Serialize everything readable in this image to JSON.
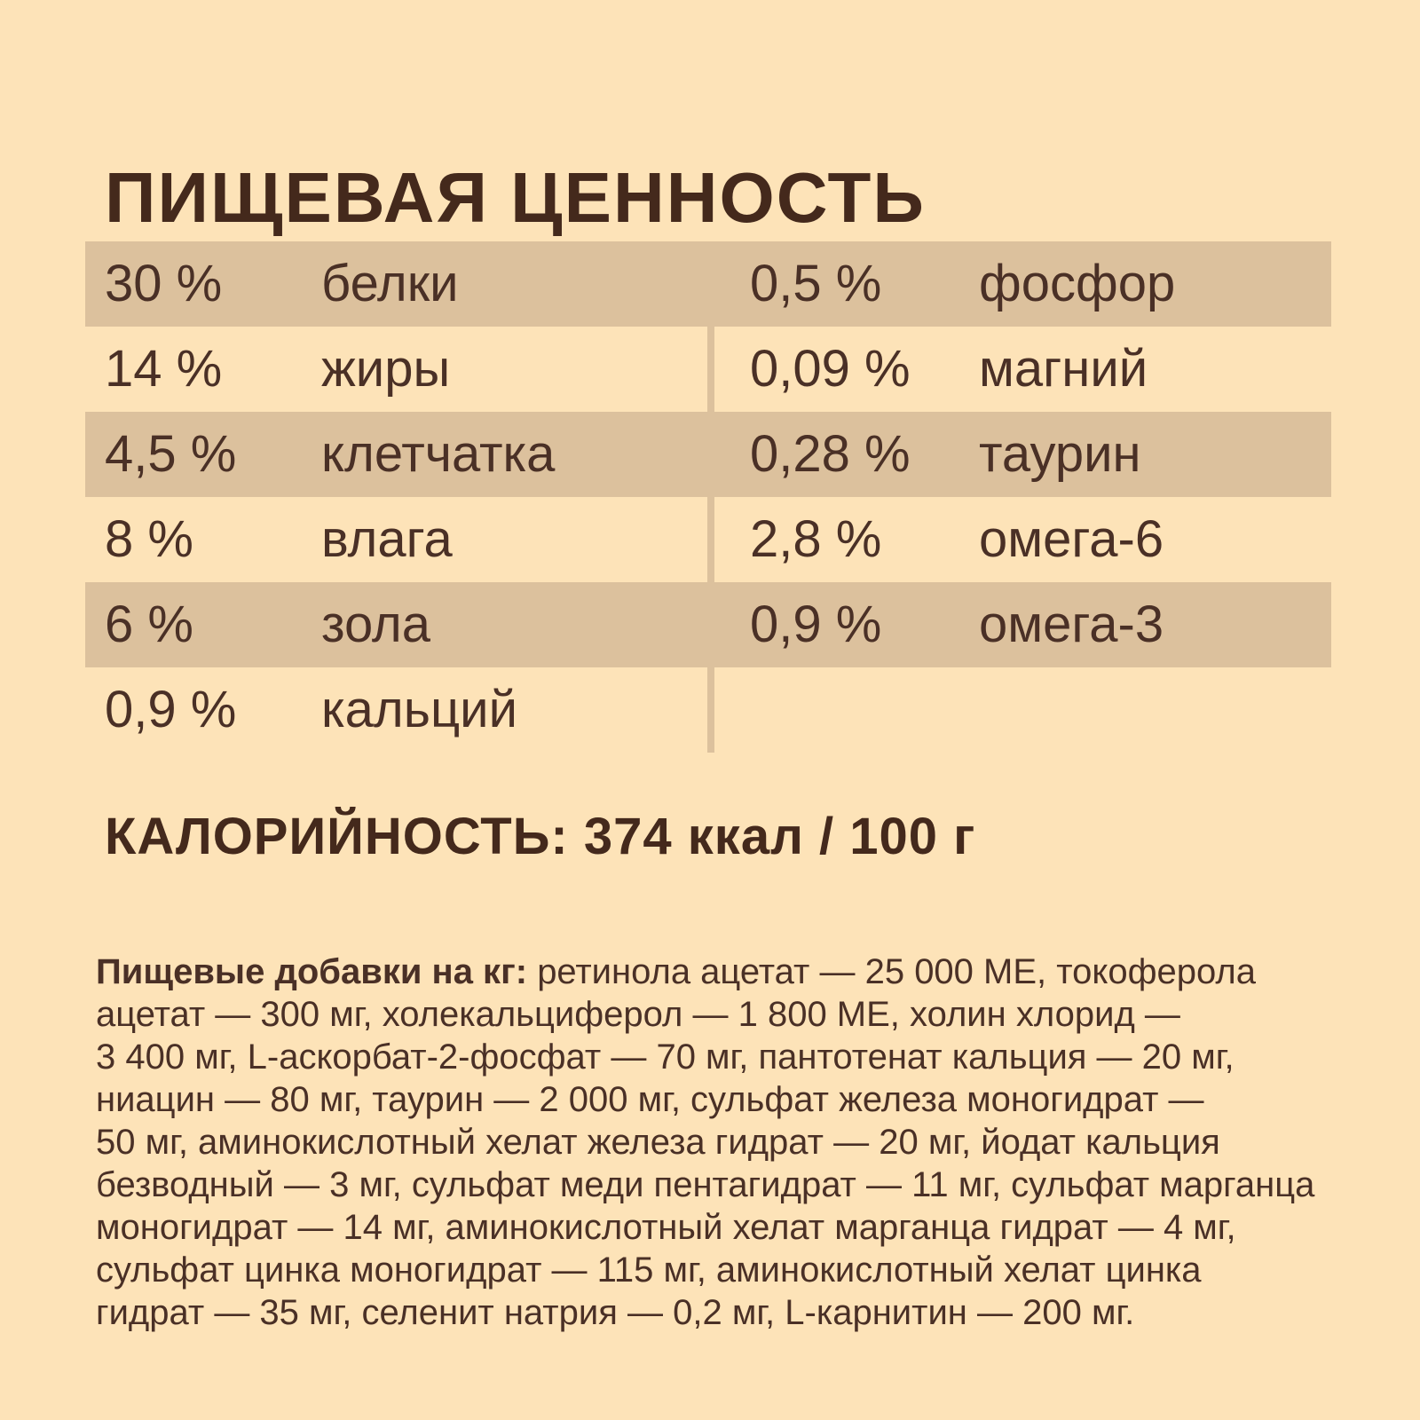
{
  "colors": {
    "background": "#fde3b8",
    "stripe": "#dcc19d",
    "divider": "#dcc19d",
    "heading_text": "#44291c",
    "body_text": "#4a3026"
  },
  "title": "ПИЩЕВАЯ ЦЕННОСТЬ",
  "nutrition_table": {
    "rows": [
      {
        "left_value": "30 %",
        "left_name": "белки",
        "right_value": "0,5 %",
        "right_name": "фосфор",
        "shaded": true
      },
      {
        "left_value": "14 %",
        "left_name": "жиры",
        "right_value": "0,09 %",
        "right_name": "магний",
        "shaded": false
      },
      {
        "left_value": "4,5 %",
        "left_name": "клетчатка",
        "right_value": "0,28 %",
        "right_name": "таурин",
        "shaded": true
      },
      {
        "left_value": "8 %",
        "left_name": "влага",
        "right_value": "2,8 %",
        "right_name": "омега-6",
        "shaded": false
      },
      {
        "left_value": "6 %",
        "left_name": "зола",
        "right_value": "0,9 %",
        "right_name": "омега-3",
        "shaded": true
      },
      {
        "left_value": "0,9 %",
        "left_name": "кальций",
        "right_value": "",
        "right_name": "",
        "shaded": false
      }
    ]
  },
  "calories": {
    "label": "КАЛОРИЙНОСТЬ:",
    "value": "374 ккал / 100 г"
  },
  "additives": {
    "lead": "Пищевые добавки на кг:",
    "lines": [
      "ретинола ацетат — 25 000 МЕ, токоферола",
      "ацетат — 300 мг, холекальциферол — 1 800 МЕ, холин хлорид —",
      "3 400 мг, L-аскорбат-2-фосфат — 70 мг, пантотенат кальция — 20 мг,",
      "ниацин — 80 мг, таурин — 2 000 мг, сульфат железа моногидрат —",
      "50 мг, аминокислотный хелат железа гидрат — 20 мг, йодат кальция",
      "безводный — 3 мг, сульфат меди пентагидрат — 11 мг, сульфат марганца",
      "моногидрат — 14 мг, аминокислотный хелат марганца гидрат — 4 мг,",
      "сульфат цинка моногидрат — 115 мг, аминокислотный хелат цинка",
      "гидрат — 35 мг, селенит натрия — 0,2 мг, L-карнитин — 200 мг."
    ]
  }
}
